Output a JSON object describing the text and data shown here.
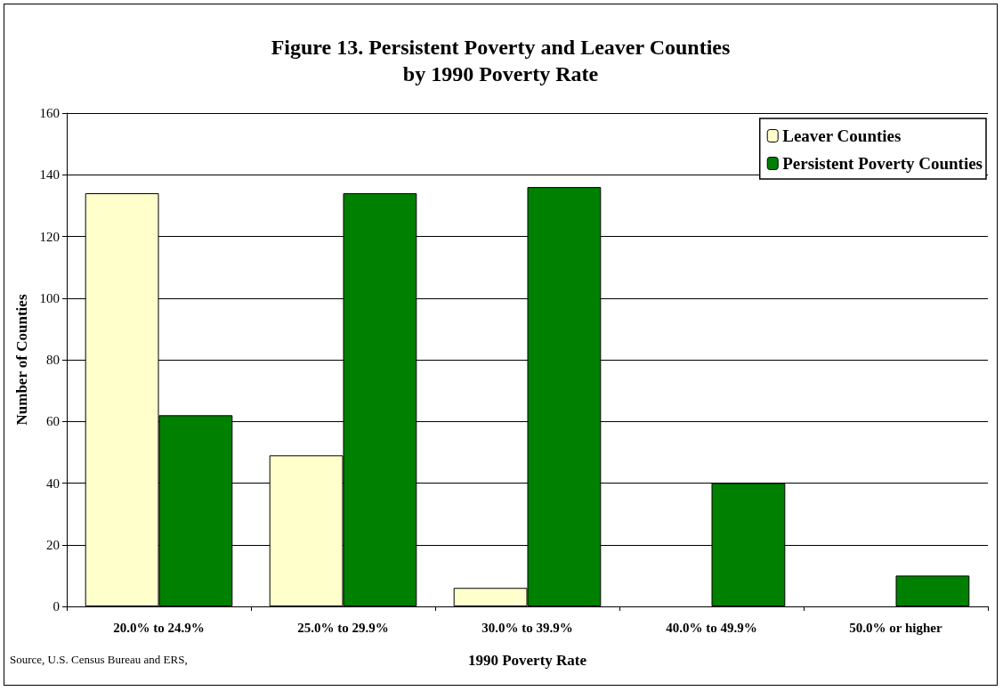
{
  "chart_data": {
    "type": "bar",
    "title": "Figure 13. Persistent Poverty and Leaver Counties\nby 1990 Poverty Rate",
    "categories": [
      "20.0% to 24.9%",
      "25.0% to 29.9%",
      "30.0% to 39.9%",
      "40.0% to 49.9%",
      "50.0% or higher"
    ],
    "series": [
      {
        "name": "Leaver Counties",
        "color": "#ffffcc",
        "values": [
          134,
          49,
          6,
          0,
          0
        ]
      },
      {
        "name": "Persistent Poverty Counties",
        "color": "#008000",
        "values": [
          62,
          134,
          136,
          40,
          10
        ]
      }
    ],
    "xlabel": "1990 Poverty Rate",
    "ylabel": "Number of Counties",
    "ylim": [
      0,
      160
    ],
    "yticks": [
      0,
      20,
      40,
      60,
      80,
      100,
      120,
      140,
      160
    ],
    "grid": "y",
    "legend": "top right",
    "annotations": [
      "Source, U.S. Census Bureau and ERS,"
    ]
  }
}
